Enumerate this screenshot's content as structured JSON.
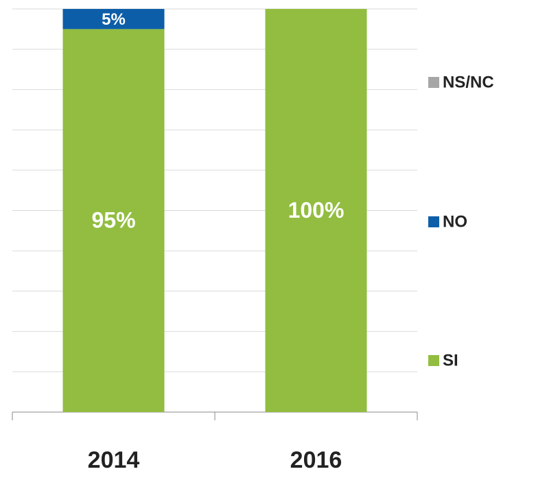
{
  "chart_data": {
    "type": "stacked_bar",
    "categories": [
      "2014",
      "2016"
    ],
    "series": [
      {
        "name": "SI",
        "color": "#92bd40",
        "values": [
          95,
          100
        ],
        "value_labels": [
          "95%",
          "100%"
        ]
      },
      {
        "name": "NO",
        "color": "#0d5ea8",
        "values": [
          5,
          0
        ],
        "value_labels": [
          "5%",
          null
        ]
      },
      {
        "name": "NS/NC",
        "color": "#a6a6a6",
        "values": [
          0,
          0
        ],
        "value_labels": [
          null,
          null
        ]
      }
    ],
    "ylim": [
      0,
      100
    ],
    "yticks": [
      0,
      10,
      20,
      30,
      40,
      50,
      60,
      70,
      80,
      90,
      100
    ],
    "grid": true,
    "legend": "right"
  }
}
